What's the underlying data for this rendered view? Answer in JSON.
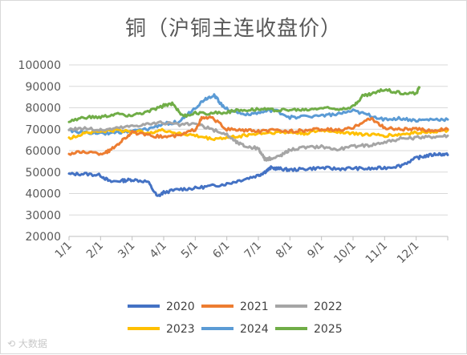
{
  "chart_data": {
    "type": "line",
    "title": "铜（沪铜主连收盘价）",
    "xlabel": "",
    "ylabel": "",
    "ylim": [
      20000,
      100000
    ],
    "yticks": [
      20000,
      30000,
      40000,
      50000,
      60000,
      70000,
      80000,
      90000,
      100000
    ],
    "xlim": [
      1,
      13
    ],
    "x_tick_labels": [
      "1/1",
      "2/1",
      "3/1",
      "4/1",
      "5/1",
      "6/1",
      "7/1",
      "8/1",
      "9/1",
      "10/1",
      "11/1",
      "12/1"
    ],
    "grid": "horizontal",
    "legend_position": "bottom",
    "series": [
      {
        "name": "2020",
        "color": "#4472c4",
        "x": [
          1,
          1.5,
          2,
          2.3,
          2.7,
          3,
          3.5,
          3.8,
          4,
          4.5,
          5,
          5.5,
          6,
          6.5,
          7,
          7.2,
          7.4,
          7.7,
          8,
          8.5,
          9,
          9.5,
          10,
          10.5,
          11,
          11.5,
          12,
          12.3,
          12.7,
          13
        ],
        "y": [
          49000,
          49200,
          48500,
          45500,
          46000,
          46500,
          45500,
          38500,
          40500,
          42000,
          42500,
          43500,
          44500,
          46500,
          48500,
          50000,
          52000,
          51500,
          51000,
          51500,
          52000,
          51500,
          51800,
          51500,
          52000,
          53000,
          56500,
          57500,
          58500,
          58000
        ]
      },
      {
        "name": "2021",
        "color": "#ed7d31",
        "x": [
          1,
          1.5,
          2,
          2.3,
          2.7,
          3,
          3.5,
          4,
          4.5,
          5,
          5.2,
          5.5,
          6,
          6.5,
          7,
          7.5,
          8,
          8.5,
          9,
          9.5,
          10,
          10.3,
          10.6,
          11,
          11.5,
          12,
          12.5,
          13
        ],
        "y": [
          58500,
          59500,
          58500,
          60000,
          65000,
          68500,
          67000,
          66500,
          67000,
          70000,
          75000,
          75500,
          70000,
          69500,
          69000,
          69500,
          69000,
          69500,
          70000,
          69500,
          70500,
          73500,
          75000,
          70500,
          70000,
          70000,
          69500,
          70000
        ]
      },
      {
        "name": "2022",
        "color": "#a5a5a5",
        "x": [
          1,
          1.5,
          2,
          2.5,
          3,
          3.5,
          4,
          4.5,
          5,
          5.5,
          6,
          6.3,
          6.6,
          7,
          7.2,
          7.5,
          7.8,
          8,
          8.5,
          9,
          9.5,
          10,
          10.5,
          11,
          11.5,
          12,
          12.5,
          13
        ],
        "y": [
          70000,
          70500,
          69500,
          70500,
          71500,
          72500,
          73000,
          72000,
          72500,
          70000,
          67500,
          64000,
          62000,
          61000,
          56000,
          56500,
          58500,
          60500,
          61500,
          62000,
          60500,
          62000,
          62500,
          64000,
          65500,
          66000,
          66500,
          67000
        ]
      },
      {
        "name": "2023",
        "color": "#ffc000",
        "x": [
          1,
          1.5,
          2,
          2.5,
          3,
          3.5,
          4,
          4.5,
          5,
          5.5,
          6,
          6.5,
          7,
          7.5,
          8,
          8.5,
          9,
          9.5,
          10,
          10.5,
          11,
          11.5,
          12,
          12.5,
          13
        ],
        "y": [
          65500,
          68500,
          69000,
          69500,
          69000,
          68500,
          69500,
          68000,
          67000,
          65500,
          66000,
          67000,
          68000,
          68500,
          68500,
          68000,
          69500,
          69000,
          68000,
          67500,
          67000,
          67500,
          68500,
          69000,
          69500
        ]
      },
      {
        "name": "2024",
        "color": "#5b9bd5",
        "x": [
          1,
          1.5,
          2,
          2.5,
          3,
          3.5,
          4,
          4.5,
          5,
          5.3,
          5.6,
          5.8,
          6,
          6.5,
          7,
          7.5,
          8,
          8.5,
          9,
          9.5,
          10,
          10.5,
          11,
          11.5,
          12,
          12.5,
          13
        ],
        "y": [
          69500,
          68500,
          68000,
          68500,
          69000,
          70000,
          72500,
          73500,
          80000,
          84000,
          86000,
          82000,
          79500,
          77000,
          77500,
          79000,
          75500,
          76000,
          76500,
          77000,
          78500,
          76500,
          74500,
          75000,
          74000,
          74500,
          74500
        ]
      },
      {
        "name": "2025",
        "color": "#70ad47",
        "x": [
          1,
          1.5,
          2,
          2.5,
          3,
          3.5,
          4,
          4.3,
          4.6,
          5,
          5.5,
          6,
          6.5,
          7,
          7.5,
          8,
          8.5,
          9,
          9.5,
          10,
          10.3,
          10.6,
          11,
          11.5,
          12,
          12.1
        ],
        "y": [
          73500,
          75500,
          75500,
          77000,
          76500,
          78000,
          81000,
          82000,
          76000,
          77500,
          77500,
          78000,
          79000,
          79500,
          79000,
          79000,
          79000,
          80000,
          79500,
          80500,
          85500,
          86500,
          88500,
          87000,
          86500,
          89500
        ]
      }
    ]
  }
}
